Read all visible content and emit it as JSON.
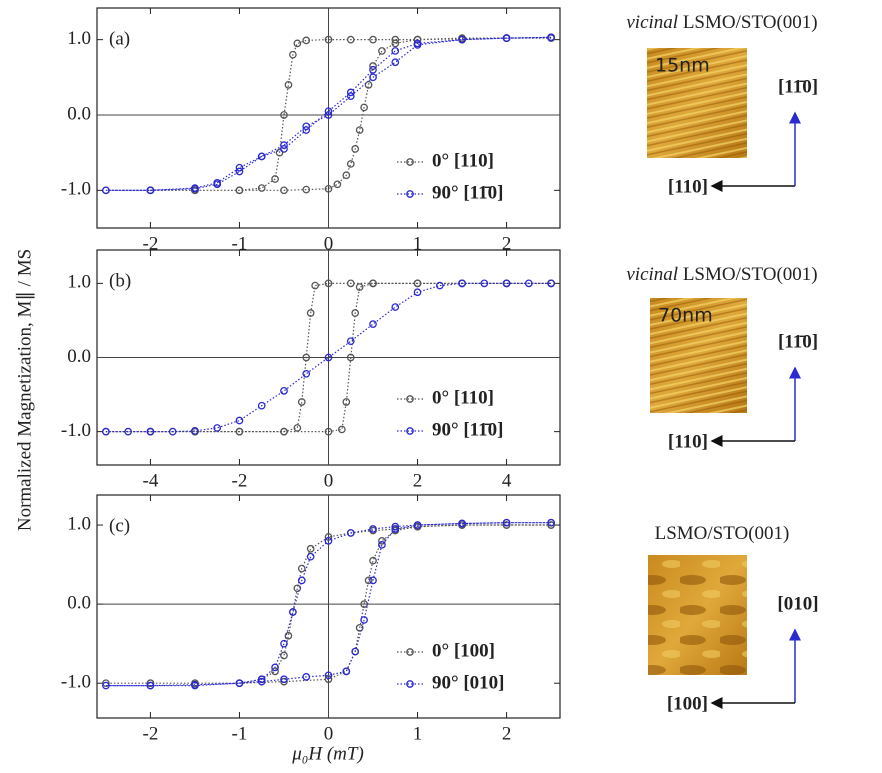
{
  "shared": {
    "ylabel": "Normalized Magnetization, M∥ / MS",
    "xlabel": "μ₀H (mT)"
  },
  "chart_data": [
    {
      "type": "scatter",
      "panel": "(a)",
      "xlim": [
        -2.6,
        2.6
      ],
      "ylim": [
        -1.5,
        1.42
      ],
      "xticks": [
        -2,
        -1,
        0,
        1,
        2
      ],
      "yticks": [
        {
          "value": -1,
          "label": "-1.0"
        },
        {
          "value": 0,
          "label": "0.0"
        },
        {
          "value": 1,
          "label": "1.0"
        }
      ],
      "zero_lines": true,
      "side": {
        "sample_prefix": "vicinal",
        "sample": "LSMO/STO(001)",
        "scale": "15nm",
        "dir_h": "[110]",
        "dir_v": "[11̄0]"
      },
      "series": [
        {
          "name": "0° [110]",
          "color": "#555555",
          "x": [
            2.5,
            2.0,
            1.5,
            1.0,
            0.75,
            0.5,
            0.25,
            0,
            -0.25,
            -0.35,
            -0.4,
            -0.45,
            -0.5,
            -0.55,
            -0.6,
            -0.75,
            -1.0,
            -1.5,
            -2.0,
            -2.5,
            -2.0,
            -1.5,
            -1.0,
            -0.5,
            -0.25,
            0,
            0.1,
            0.2,
            0.25,
            0.3,
            0.35,
            0.4,
            0.45,
            0.5,
            0.6,
            0.75,
            1.0,
            1.5,
            2.0,
            2.5
          ],
          "values": [
            1.02,
            1.02,
            1.01,
            1.0,
            1.0,
            1.0,
            1.0,
            1.0,
            0.99,
            0.95,
            0.8,
            0.4,
            0.0,
            -0.5,
            -0.85,
            -0.97,
            -1.0,
            -1.0,
            -1.0,
            -1.0,
            -1.0,
            -1.0,
            -1.0,
            -1.0,
            -0.99,
            -0.98,
            -0.92,
            -0.8,
            -0.65,
            -0.45,
            -0.2,
            0.1,
            0.4,
            0.65,
            0.85,
            0.95,
            1.0,
            1.02,
            1.02,
            1.03
          ]
        },
        {
          "name": "90° [11̄0]",
          "color": "#2a2ad0",
          "x": [
            2.5,
            2.0,
            1.5,
            1.0,
            0.75,
            0.5,
            0.25,
            0,
            -0.25,
            -0.5,
            -0.75,
            -1.0,
            -1.25,
            -1.5,
            -2.0,
            -2.5,
            -2.0,
            -1.5,
            -1.25,
            -1.0,
            -0.75,
            -0.5,
            -0.25,
            0,
            0.25,
            0.5,
            0.75,
            1.0,
            1.5,
            2.0,
            2.5
          ],
          "values": [
            1.03,
            1.02,
            1.0,
            0.95,
            0.85,
            0.6,
            0.3,
            0.05,
            -0.2,
            -0.45,
            -0.55,
            -0.75,
            -0.92,
            -0.98,
            -1.0,
            -1.0,
            -1.0,
            -0.97,
            -0.9,
            -0.7,
            -0.55,
            -0.4,
            -0.15,
            0.0,
            0.25,
            0.5,
            0.7,
            0.93,
            1.0,
            1.02,
            1.03
          ]
        }
      ]
    },
    {
      "type": "scatter",
      "panel": "(b)",
      "xlim": [
        -5.2,
        5.2
      ],
      "ylim": [
        -1.45,
        1.45
      ],
      "xticks": [
        -4,
        -2,
        0,
        2,
        4
      ],
      "yticks": [
        {
          "value": -1,
          "label": "-1.0"
        },
        {
          "value": 0,
          "label": "0.0"
        },
        {
          "value": 1,
          "label": "1.0"
        }
      ],
      "zero_lines": true,
      "side": {
        "sample_prefix": "vicinal",
        "sample": "LSMO/STO(001)",
        "scale": "70nm",
        "dir_h": "[110]",
        "dir_v": "[11̄0]"
      },
      "series": [
        {
          "name": "0° [110]",
          "color": "#555555",
          "x": [
            5,
            4,
            3,
            2,
            1,
            0.5,
            0,
            -0.3,
            -0.4,
            -0.5,
            -0.6,
            -0.7,
            -1,
            -2,
            -3,
            -4,
            -5,
            -4,
            -3,
            -2,
            -1,
            0,
            0.3,
            0.4,
            0.5,
            0.6,
            0.7,
            1,
            2,
            3,
            4,
            5
          ],
          "values": [
            1,
            1,
            1,
            1,
            1,
            1,
            1,
            0.97,
            0.6,
            0,
            -0.6,
            -0.95,
            -1,
            -1,
            -1,
            -1,
            -1,
            -1,
            -1,
            -1,
            -1,
            -1,
            -0.97,
            -0.6,
            0,
            0.6,
            0.95,
            1,
            1,
            1,
            1,
            1
          ]
        },
        {
          "name": "90° [11̄0]",
          "color": "#2a2ad0",
          "x": [
            -5,
            -4.5,
            -4,
            -3.5,
            -3,
            -2.5,
            -2,
            -1.5,
            -1,
            -0.5,
            0,
            0.5,
            1,
            1.5,
            2,
            2.5,
            3,
            3.5,
            4,
            4.5,
            5
          ],
          "values": [
            -1,
            -1,
            -1,
            -1,
            -0.99,
            -0.95,
            -0.85,
            -0.65,
            -0.45,
            -0.22,
            0,
            0.22,
            0.45,
            0.68,
            0.88,
            0.97,
            1,
            1,
            1,
            1,
            1
          ]
        }
      ]
    },
    {
      "type": "scatter",
      "panel": "(c)",
      "xlim": [
        -2.6,
        2.6
      ],
      "ylim": [
        -1.44,
        1.38
      ],
      "xticks": [
        -2,
        -1,
        0,
        1,
        2
      ],
      "yticks": [
        {
          "value": -1,
          "label": "-1.0"
        },
        {
          "value": 0,
          "label": "0.0"
        },
        {
          "value": 1,
          "label": "1.0"
        }
      ],
      "zero_lines": true,
      "side": {
        "sample": "LSMO/STO(001)",
        "dir_h": "[100]",
        "dir_v": "[010]"
      },
      "series": [
        {
          "name": "0° [100]",
          "color": "#555555",
          "x": [
            2.5,
            2,
            1.5,
            1,
            0.75,
            0.5,
            0.25,
            0,
            -0.2,
            -0.3,
            -0.35,
            -0.4,
            -0.45,
            -0.5,
            -0.6,
            -0.75,
            -1,
            -1.5,
            -2,
            -2.5,
            -2,
            -1.5,
            -1,
            -0.5,
            0,
            0.2,
            0.3,
            0.35,
            0.4,
            0.45,
            0.5,
            0.6,
            0.75,
            1,
            1.5,
            2,
            2.5
          ],
          "values": [
            1,
            1,
            1,
            0.98,
            0.95,
            0.93,
            0.9,
            0.85,
            0.7,
            0.45,
            0.2,
            -0.1,
            -0.4,
            -0.65,
            -0.85,
            -0.95,
            -1,
            -1,
            -1,
            -1,
            -1,
            -1,
            -1,
            -0.98,
            -0.95,
            -0.85,
            -0.6,
            -0.3,
            0,
            0.3,
            0.55,
            0.8,
            0.93,
            0.98,
            1,
            1,
            1
          ]
        },
        {
          "name": "90° [010]",
          "color": "#2a2ad0",
          "x": [
            2.5,
            2,
            1.5,
            1,
            0.75,
            0.5,
            0.25,
            0,
            -0.2,
            -0.3,
            -0.4,
            -0.5,
            -0.6,
            -0.75,
            -1,
            -1.5,
            -2,
            -2.5,
            -2,
            -1.5,
            -1,
            -0.75,
            -0.5,
            -0.25,
            0,
            0.2,
            0.3,
            0.4,
            0.5,
            0.6,
            0.75,
            1,
            1.5,
            2,
            2.5
          ],
          "values": [
            1.03,
            1.03,
            1.02,
            1.0,
            0.98,
            0.95,
            0.9,
            0.8,
            0.6,
            0.3,
            -0.1,
            -0.5,
            -0.8,
            -0.95,
            -1.0,
            -1.03,
            -1.03,
            -1.03,
            -1.03,
            -1.02,
            -1.0,
            -0.98,
            -0.95,
            -0.92,
            -0.9,
            -0.85,
            -0.6,
            -0.2,
            0.3,
            0.75,
            0.95,
            1.0,
            1.02,
            1.03,
            1.03
          ]
        }
      ]
    }
  ]
}
